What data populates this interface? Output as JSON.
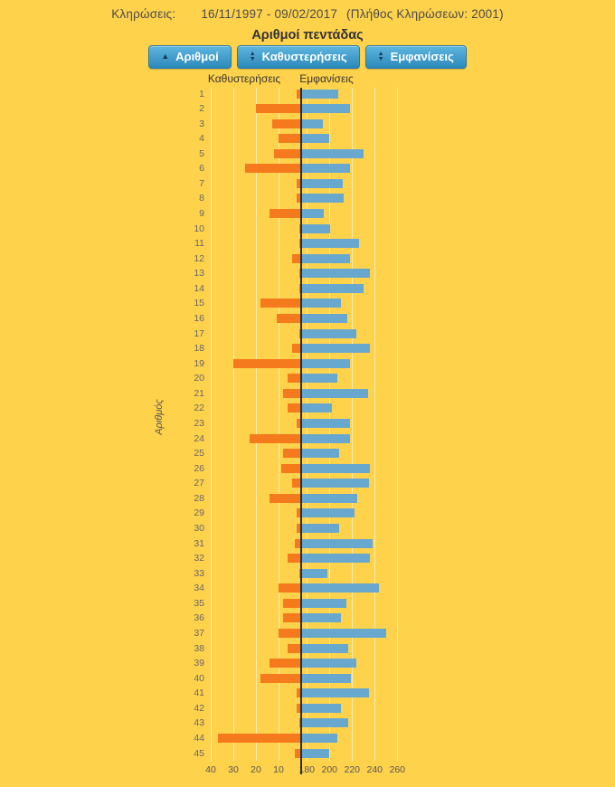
{
  "header": {
    "label": "Κληρώσεις:",
    "range": "16/11/1997 - 09/02/2017",
    "count": "(Πλήθος Κληρώσεων: 2001)"
  },
  "title": "Αριθμοί πεντάδας",
  "sort_buttons": [
    {
      "label": "Αριθμοί",
      "icon": "▲",
      "state": "ascending"
    },
    {
      "label": "Καθυστερήσεις",
      "icon_up": "▲",
      "icon_down": "▼",
      "state": "unsorted"
    },
    {
      "label": "Εμφανίσεις",
      "icon_up": "▲",
      "icon_down": "▼",
      "state": "unsorted"
    }
  ],
  "chart_data": {
    "type": "bar",
    "orientation": "horizontal-diverging",
    "title": "Αριθμοί πεντάδας",
    "ylabel": "Αριθμός",
    "column_headers": [
      "Καθυστερήσεις",
      "Εμφανίσεις"
    ],
    "total_draws": 2001,
    "categories": [
      1,
      2,
      3,
      4,
      5,
      6,
      7,
      8,
      9,
      10,
      11,
      12,
      13,
      14,
      15,
      16,
      17,
      18,
      19,
      20,
      21,
      22,
      23,
      24,
      25,
      26,
      27,
      28,
      29,
      30,
      31,
      32,
      33,
      34,
      35,
      36,
      37,
      38,
      39,
      40,
      41,
      42,
      43,
      44,
      45
    ],
    "series": [
      {
        "name": "Καθυστερήσεις",
        "side": "left",
        "color": "#f5791d",
        "values": [
          2,
          20,
          13,
          10,
          12,
          25,
          2,
          2,
          14,
          1,
          1,
          4,
          1,
          1,
          18,
          11,
          1,
          4,
          30,
          6,
          8,
          6,
          2,
          23,
          8,
          9,
          4,
          14,
          2,
          2,
          3,
          6,
          1,
          10,
          8,
          8,
          10,
          6,
          14,
          18,
          2,
          2,
          1,
          37,
          3
        ]
      },
      {
        "name": "Εμφανίσεις",
        "side": "right",
        "color": "#68a8cf",
        "values": [
          207,
          217,
          193,
          199,
          229,
          217,
          211,
          212,
          194,
          200,
          225,
          217,
          235,
          229,
          209,
          215,
          223,
          235,
          217,
          206,
          233,
          201,
          217,
          217,
          208,
          235,
          234,
          224,
          221,
          208,
          237,
          235,
          197,
          243,
          214,
          209,
          249,
          216,
          223,
          218,
          234,
          209,
          216,
          206,
          199
        ]
      }
    ],
    "left_axis": {
      "ticks": [
        40,
        30,
        20,
        10
      ],
      "max": 44,
      "label_side": "delays"
    },
    "right_axis": {
      "ticks": [
        180,
        200,
        220,
        240,
        260
      ],
      "baseline": 175,
      "max": 262
    },
    "grid": true
  },
  "colors": {
    "background": "#FFD24C",
    "delay_bar": "#f5791d",
    "appearance_bar": "#68a8cf",
    "axis_line": "#2e2e2e",
    "button_top": "#5fb6df",
    "button_bottom": "#2b89ba"
  }
}
